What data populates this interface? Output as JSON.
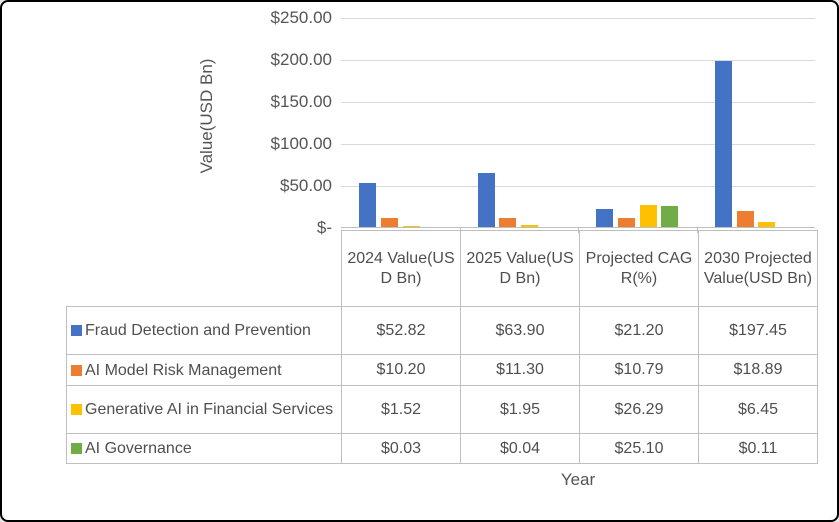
{
  "chart": {
    "y_axis_title": "Value(USD Bn)",
    "x_axis_title": "Year",
    "y_ticks": [
      "$250.00",
      "$200.00",
      "$150.00",
      "$100.00",
      "$50.00",
      "$-"
    ]
  },
  "chart_data": {
    "type": "bar",
    "categories": [
      "2024 Value(USD Bn)",
      "2025 Value(USD Bn)",
      "Projected CAGR(%)",
      "2030 Projected Value(USD Bn)"
    ],
    "series": [
      {
        "name": "Fraud Detection and Prevention",
        "color": "#4472C4",
        "values": [
          52.82,
          63.9,
          21.2,
          197.45
        ]
      },
      {
        "name": "AI Model Risk Management",
        "color": "#ED7D31",
        "values": [
          10.2,
          11.3,
          10.79,
          18.89
        ]
      },
      {
        "name": "Generative AI in Financial Services",
        "color": "#FFC000",
        "values": [
          1.52,
          1.95,
          26.29,
          6.45
        ]
      },
      {
        "name": "AI Governance",
        "color": "#70AD47",
        "values": [
          0.03,
          0.04,
          25.1,
          0.11
        ]
      }
    ],
    "title": "",
    "xlabel": "Year",
    "ylabel": "Value(USD Bn)",
    "ylim": [
      0,
      250
    ],
    "grid": true,
    "legend_position": "data-table-below"
  },
  "table": {
    "headers": [
      "2024 Value(USD Bn)",
      "2025 Value(USD Bn)",
      "Projected CAGR(%)",
      "2030 Projected Value(USD Bn)"
    ],
    "rows": [
      {
        "label": "Fraud Detection and Prevention",
        "key_color": "#4472C4",
        "values": [
          "$52.82",
          "$63.90",
          "$21.20",
          "$197.45"
        ]
      },
      {
        "label": "AI Model Risk Management",
        "key_color": "#ED7D31",
        "values": [
          "$10.20",
          "$11.30",
          "$10.79",
          "$18.89"
        ]
      },
      {
        "label": "Generative AI in Financial Services",
        "key_color": "#FFC000",
        "values": [
          "$1.52",
          "$1.95",
          "$26.29",
          "$6.45"
        ]
      },
      {
        "label": "AI Governance",
        "key_color": "#70AD47",
        "values": [
          "$0.03",
          "$0.04",
          "$25.10",
          "$0.11"
        ]
      }
    ]
  }
}
